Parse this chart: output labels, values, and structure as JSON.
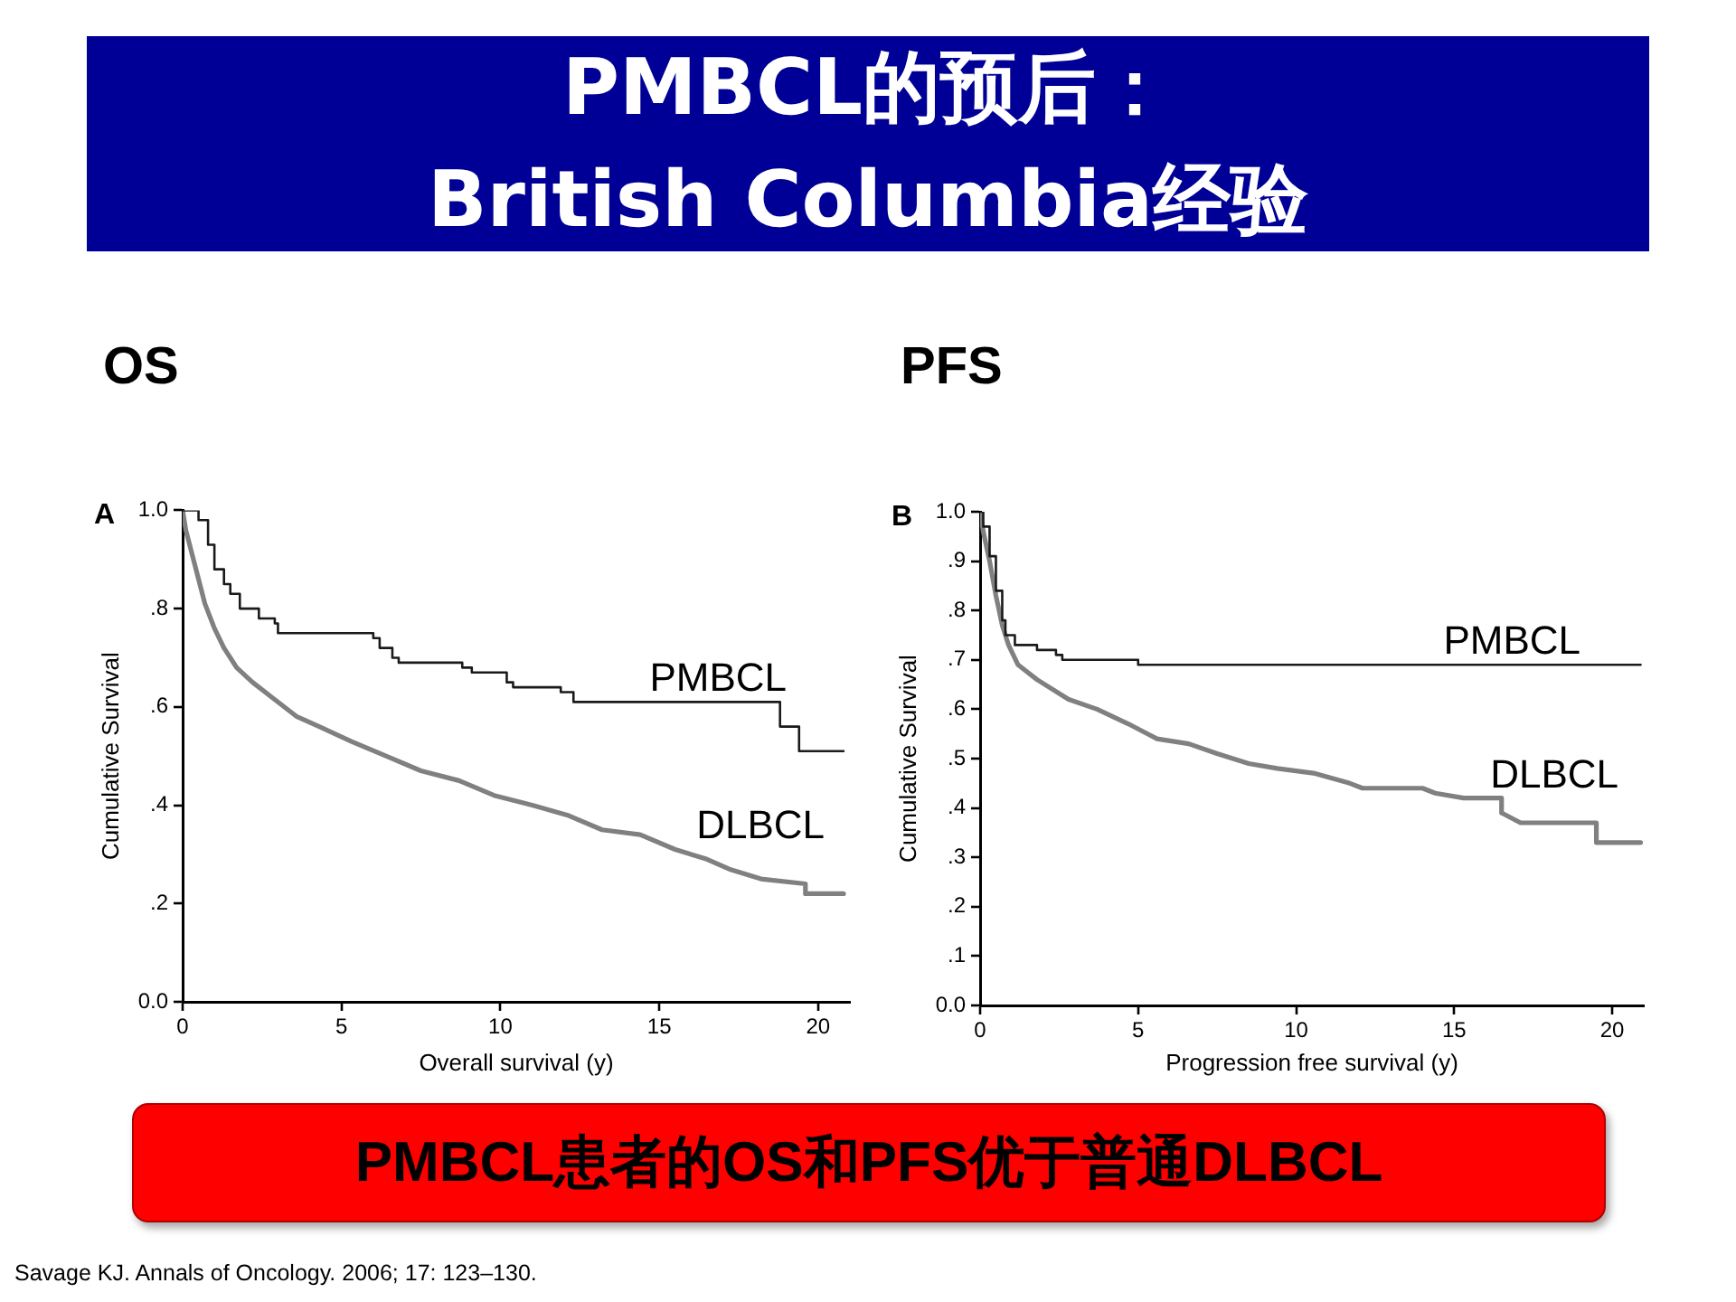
{
  "chart_data": [
    {
      "type": "other",
      "title": "PMBCL的预后：\nBritish Columbia经验"
    },
    {
      "type": "step",
      "title": "OS",
      "xlabel": "Overall survival (y)",
      "ylabel": "Cumulative Survival",
      "annotations": [
        "A"
      ],
      "xlim": [
        0,
        21
      ],
      "xticks": [
        0,
        5,
        10,
        15,
        20
      ],
      "ylim": [
        0,
        1
      ],
      "yticks": [
        {
          "value": 0,
          "label": "0.0"
        },
        {
          "value": 0.2,
          "label": ".2"
        },
        {
          "value": 0.4,
          "label": ".4"
        },
        {
          "value": 0.6,
          "label": ".6"
        },
        {
          "value": 0.8,
          "label": ".8"
        },
        {
          "value": 1,
          "label": "1.0"
        }
      ],
      "grid": false,
      "legend": false,
      "series": [
        {
          "name": "PMBCL",
          "color": "#1a1a1a",
          "x": [
            0,
            0.5,
            0.8,
            1.0,
            1.3,
            1.5,
            1.8,
            2.4,
            2.9,
            3.0,
            6.0,
            6.2,
            6.6,
            6.8,
            8.8,
            9.1,
            10.2,
            10.4,
            11.9,
            12.3,
            18.8,
            19.4,
            20.8
          ],
          "values": [
            1,
            0.98,
            0.93,
            0.88,
            0.85,
            0.83,
            0.8,
            0.78,
            0.77,
            0.75,
            0.74,
            0.72,
            0.7,
            0.69,
            0.68,
            0.67,
            0.65,
            0.64,
            0.63,
            0.61,
            0.56,
            0.51,
            0.51
          ]
        },
        {
          "name": "DLBCL",
          "type": "line",
          "color": "#808080",
          "x": [
            0,
            0.1,
            0.3,
            0.5,
            0.7,
            1.0,
            1.3,
            1.7,
            2.2,
            2.8,
            3.6,
            4.3,
            5.3,
            6.4,
            7.5,
            8.7,
            9.8,
            11.0,
            12.1,
            13.2,
            14.4,
            15.5,
            16.5,
            17.2,
            18.2,
            19.6,
            19.6,
            20.8
          ],
          "values": [
            1,
            0.96,
            0.91,
            0.86,
            0.81,
            0.76,
            0.72,
            0.68,
            0.65,
            0.62,
            0.58,
            0.56,
            0.53,
            0.5,
            0.47,
            0.45,
            0.42,
            0.4,
            0.38,
            0.35,
            0.34,
            0.31,
            0.29,
            0.27,
            0.25,
            0.24,
            0.22,
            0.22
          ]
        }
      ]
    },
    {
      "type": "step",
      "title": "PFS",
      "xlabel": "Progression free survival (y)",
      "ylabel": "Cumulative Survival",
      "annotations": [
        "B"
      ],
      "xlim": [
        0,
        21
      ],
      "xticks": [
        0,
        5,
        10,
        15,
        20
      ],
      "ylim": [
        0,
        1
      ],
      "yticks": [
        {
          "value": 0,
          "label": "0.0"
        },
        {
          "value": 0.1,
          "label": ".1"
        },
        {
          "value": 0.2,
          "label": ".2"
        },
        {
          "value": 0.3,
          "label": ".3"
        },
        {
          "value": 0.4,
          "label": ".4"
        },
        {
          "value": 0.5,
          "label": ".5"
        },
        {
          "value": 0.6,
          "label": ".6"
        },
        {
          "value": 0.7,
          "label": ".7"
        },
        {
          "value": 0.8,
          "label": ".8"
        },
        {
          "value": 0.9,
          "label": ".9"
        },
        {
          "value": 1,
          "label": "1.0"
        }
      ],
      "grid": false,
      "legend": false,
      "series": [
        {
          "name": "PMBCL",
          "color": "#1a1a1a",
          "x": [
            0,
            0.1,
            0.3,
            0.5,
            0.7,
            0.8,
            1.1,
            1.8,
            2.4,
            2.6,
            5.0,
            20.9
          ],
          "values": [
            1,
            0.97,
            0.91,
            0.84,
            0.78,
            0.75,
            0.73,
            0.72,
            0.71,
            0.7,
            0.69,
            0.69
          ]
        },
        {
          "name": "DLBCL",
          "type": "line",
          "color": "#808080",
          "x": [
            0,
            0.1,
            0.3,
            0.5,
            0.7,
            0.9,
            1.2,
            1.8,
            2.8,
            3.7,
            4.7,
            5.6,
            6.6,
            7.5,
            8.5,
            9.4,
            10.6,
            11.7,
            12.1,
            14.0,
            14.4,
            15.3,
            16.5,
            16.5,
            17.1,
            19.5,
            19.5,
            20.9
          ],
          "values": [
            1,
            0.96,
            0.9,
            0.83,
            0.77,
            0.73,
            0.69,
            0.66,
            0.62,
            0.6,
            0.57,
            0.54,
            0.53,
            0.51,
            0.49,
            0.48,
            0.47,
            0.45,
            0.44,
            0.44,
            0.43,
            0.42,
            0.42,
            0.39,
            0.37,
            0.37,
            0.33,
            0.33
          ]
        }
      ]
    },
    {
      "type": "other",
      "annotations": [
        "PMBCL患者的OS和PFS优于普通DLBCL",
        "Savage KJ. Annals of Oncology. 2006; 17: 123–130."
      ]
    }
  ]
}
